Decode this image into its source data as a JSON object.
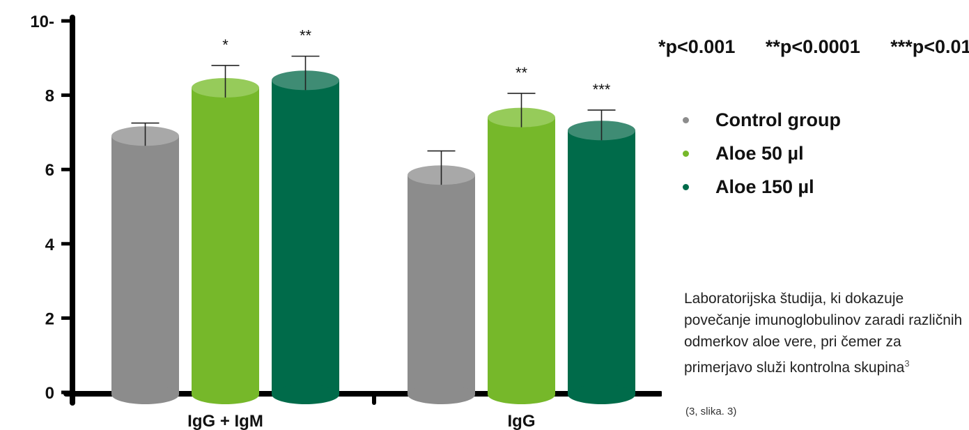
{
  "chart_data": {
    "type": "bar",
    "title": "",
    "xlabel": "",
    "ylabel": "",
    "ylim": [
      0,
      10
    ],
    "yticks": [
      "0",
      "2",
      "4",
      "6",
      "8",
      "10-"
    ],
    "categories": [
      "IgG + IgM",
      "IgG"
    ],
    "series": [
      {
        "name": "Control group",
        "color": "#8c8c8c",
        "cap_color": "#a8a8a8",
        "values": [
          6.9,
          5.85
        ],
        "errors": [
          0.35,
          0.65
        ],
        "significance": [
          "",
          ""
        ]
      },
      {
        "name": "Aloe 50 µl",
        "color": "#76b82a",
        "cap_color": "#96cb5a",
        "values": [
          8.2,
          7.4
        ],
        "errors": [
          0.6,
          0.65
        ],
        "significance": [
          "*",
          "**"
        ]
      },
      {
        "name": "Aloe 150 µl",
        "color": "#006b4a",
        "cap_color": "#3f8c74",
        "values": [
          8.4,
          7.05
        ],
        "errors": [
          0.65,
          0.55
        ],
        "significance": [
          "**",
          "***"
        ]
      }
    ],
    "grid": false,
    "legend_position": "right"
  },
  "pvalues": [
    "*p<0.001",
    "**p<0.0001",
    "***p<0.01"
  ],
  "caption": {
    "text": "Laboratorijska študija, ki dokazuje povečanje imunoglobulinov zaradi različnih odmerkov aloe vere, pri čemer za primerjavo služi kontrolna skupina",
    "sup": "3"
  },
  "source": "(3, slika. 3)"
}
